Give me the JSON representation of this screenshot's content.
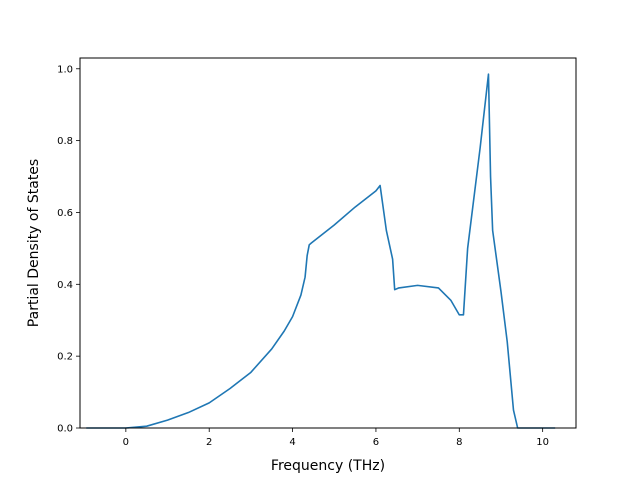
{
  "chart_data": {
    "type": "line",
    "title": "",
    "xlabel": "Frequency (THz)",
    "ylabel": "Partial Density of States",
    "xlim": [
      -1.1,
      10.8
    ],
    "ylim": [
      0.0,
      1.03
    ],
    "xticks": [
      0,
      2,
      4,
      6,
      8,
      10
    ],
    "xtick_labels": [
      "0",
      "2",
      "4",
      "6",
      "8",
      "10"
    ],
    "yticks": [
      0.0,
      0.2,
      0.4,
      0.6,
      0.8,
      1.0
    ],
    "ytick_labels": [
      "0.0",
      "0.2",
      "0.4",
      "0.6",
      "0.8",
      "1.0"
    ],
    "grid": false,
    "line_color": "#1f77b4",
    "series": [
      {
        "x": [
          -0.95,
          0.0,
          0.5,
          1.0,
          1.5,
          2.0,
          2.5,
          3.0,
          3.5,
          3.8,
          4.0,
          4.2,
          4.3,
          4.35,
          4.4,
          4.45,
          5.0,
          5.5,
          6.0,
          6.1,
          6.25,
          6.4,
          6.45,
          6.55,
          7.0,
          7.5,
          7.8,
          8.0,
          8.1,
          8.2,
          8.5,
          8.7,
          8.75,
          8.8,
          9.0,
          9.15,
          9.3,
          9.4,
          10.3
        ],
        "y": [
          0.0,
          0.0,
          0.005,
          0.022,
          0.043,
          0.07,
          0.11,
          0.155,
          0.22,
          0.27,
          0.31,
          0.37,
          0.42,
          0.48,
          0.51,
          0.515,
          0.565,
          0.615,
          0.66,
          0.675,
          0.55,
          0.47,
          0.385,
          0.39,
          0.397,
          0.39,
          0.355,
          0.315,
          0.315,
          0.5,
          0.78,
          0.985,
          0.7,
          0.55,
          0.38,
          0.24,
          0.05,
          0.0,
          0.0
        ]
      }
    ]
  }
}
